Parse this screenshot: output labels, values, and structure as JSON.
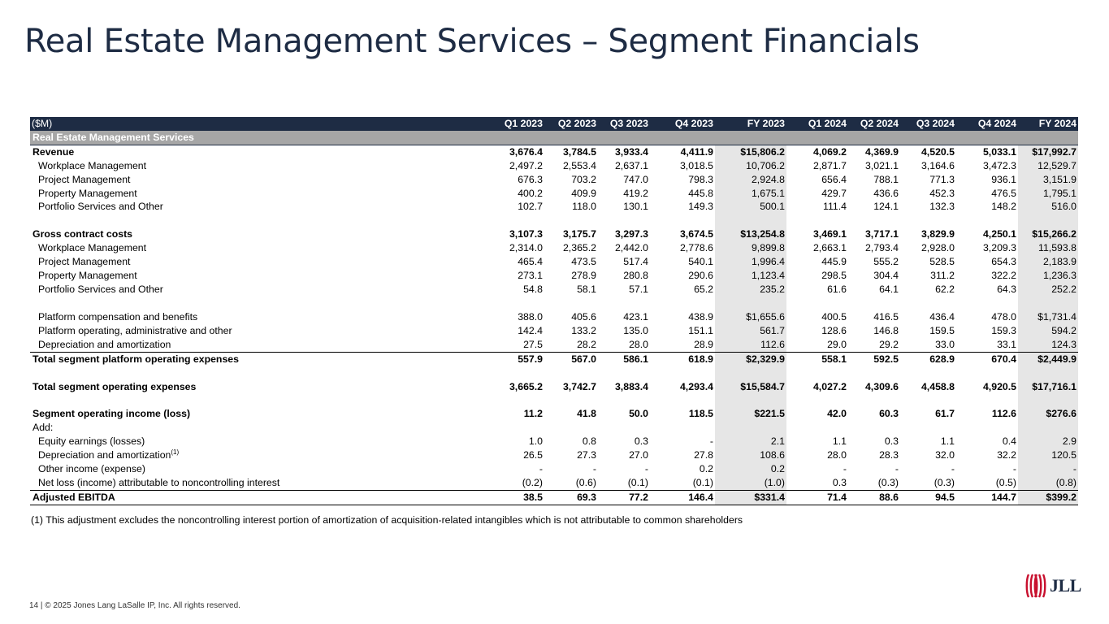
{
  "title": "Real Estate Management Services – Segment Financials",
  "table": {
    "unit_label": "($M)",
    "columns": [
      "Q1 2023",
      "Q2 2023",
      "Q3 2023",
      "Q4 2023",
      "FY 2023",
      "Q1 2024",
      "Q2 2024",
      "Q3 2024",
      "Q4 2024",
      "FY 2024"
    ],
    "section_header": "Real Estate Management Services",
    "rows": [
      {
        "label": "Revenue",
        "style": "bold",
        "values": [
          "3,676.4",
          "3,784.5",
          "3,933.4",
          "4,411.9",
          "$15,806.2",
          "4,069.2",
          "4,369.9",
          "4,520.5",
          "5,033.1",
          "$17,992.7"
        ]
      },
      {
        "label": "Workplace Management",
        "style": "indent",
        "values": [
          "2,497.2",
          "2,553.4",
          "2,637.1",
          "3,018.5",
          "10,706.2",
          "2,871.7",
          "3,021.1",
          "3,164.6",
          "3,472.3",
          "12,529.7"
        ]
      },
      {
        "label": "Project Management",
        "style": "indent",
        "values": [
          "676.3",
          "703.2",
          "747.0",
          "798.3",
          "2,924.8",
          "656.4",
          "788.1",
          "771.3",
          "936.1",
          "3,151.9"
        ]
      },
      {
        "label": "Property Management",
        "style": "indent",
        "values": [
          "400.2",
          "409.9",
          "419.2",
          "445.8",
          "1,675.1",
          "429.7",
          "436.6",
          "452.3",
          "476.5",
          "1,795.1"
        ]
      },
      {
        "label": "Portfolio Services and Other",
        "style": "indent",
        "values": [
          "102.7",
          "118.0",
          "130.1",
          "149.3",
          "500.1",
          "111.4",
          "124.1",
          "132.3",
          "148.2",
          "516.0"
        ]
      },
      {
        "label": "",
        "style": "spacer",
        "values": [
          "",
          "",
          "",
          "",
          "",
          "",
          "",
          "",
          "",
          ""
        ]
      },
      {
        "label": "Gross contract costs",
        "style": "bold",
        "values": [
          "3,107.3",
          "3,175.7",
          "3,297.3",
          "3,674.5",
          "$13,254.8",
          "3,469.1",
          "3,717.1",
          "3,829.9",
          "4,250.1",
          "$15,266.2"
        ]
      },
      {
        "label": "Workplace Management",
        "style": "indent",
        "values": [
          "2,314.0",
          "2,365.2",
          "2,442.0",
          "2,778.6",
          "9,899.8",
          "2,663.1",
          "2,793.4",
          "2,928.0",
          "3,209.3",
          "11,593.8"
        ]
      },
      {
        "label": "Project Management",
        "style": "indent",
        "values": [
          "465.4",
          "473.5",
          "517.4",
          "540.1",
          "1,996.4",
          "445.9",
          "555.2",
          "528.5",
          "654.3",
          "2,183.9"
        ]
      },
      {
        "label": "Property Management",
        "style": "indent",
        "values": [
          "273.1",
          "278.9",
          "280.8",
          "290.6",
          "1,123.4",
          "298.5",
          "304.4",
          "311.2",
          "322.2",
          "1,236.3"
        ]
      },
      {
        "label": "Portfolio Services and Other",
        "style": "indent",
        "values": [
          "54.8",
          "58.1",
          "57.1",
          "65.2",
          "235.2",
          "61.6",
          "64.1",
          "62.2",
          "64.3",
          "252.2"
        ]
      },
      {
        "label": "",
        "style": "spacer",
        "values": [
          "",
          "",
          "",
          "",
          "",
          "",
          "",
          "",
          "",
          ""
        ]
      },
      {
        "label": "Platform compensation and benefits",
        "style": "indent",
        "values": [
          "388.0",
          "405.6",
          "423.1",
          "438.9",
          "$1,655.6",
          "400.5",
          "416.5",
          "436.4",
          "478.0",
          "$1,731.4"
        ]
      },
      {
        "label": "Platform operating, administrative and other",
        "style": "indent",
        "values": [
          "142.4",
          "133.2",
          "135.0",
          "151.1",
          "561.7",
          "128.6",
          "146.8",
          "159.5",
          "159.3",
          "594.2"
        ]
      },
      {
        "label": "Depreciation and amortization",
        "style": "indent",
        "values": [
          "27.5",
          "28.2",
          "28.0",
          "28.9",
          "112.6",
          "29.0",
          "29.2",
          "33.0",
          "33.1",
          "124.3"
        ]
      },
      {
        "label": "Total segment platform operating expenses",
        "style": "bold total",
        "values": [
          "557.9",
          "567.0",
          "586.1",
          "618.9",
          "$2,329.9",
          "558.1",
          "592.5",
          "628.9",
          "670.4",
          "$2,449.9"
        ]
      },
      {
        "label": "",
        "style": "spacer",
        "values": [
          "",
          "",
          "",
          "",
          "",
          "",
          "",
          "",
          "",
          ""
        ]
      },
      {
        "label": "Total segment operating expenses",
        "style": "bold",
        "values": [
          "3,665.2",
          "3,742.7",
          "3,883.4",
          "4,293.4",
          "$15,584.7",
          "4,027.2",
          "4,309.6",
          "4,458.8",
          "4,920.5",
          "$17,716.1"
        ]
      },
      {
        "label": "",
        "style": "spacer",
        "values": [
          "",
          "",
          "",
          "",
          "",
          "",
          "",
          "",
          "",
          ""
        ]
      },
      {
        "label": "Segment operating income (loss)",
        "style": "bold",
        "values": [
          "11.2",
          "41.8",
          "50.0",
          "118.5",
          "$221.5",
          "42.0",
          "60.3",
          "61.7",
          "112.6",
          "$276.6"
        ]
      },
      {
        "label": "Add:",
        "style": "plain",
        "values": [
          "",
          "",
          "",
          "",
          "",
          "",
          "",
          "",
          "",
          ""
        ]
      },
      {
        "label": "Equity earnings (losses)",
        "style": "indent",
        "values": [
          "1.0",
          "0.8",
          "0.3",
          "-",
          "2.1",
          "1.1",
          "0.3",
          "1.1",
          "0.4",
          "2.9"
        ]
      },
      {
        "label": "Depreciation and amortization",
        "sup": "(1)",
        "style": "indent",
        "values": [
          "26.5",
          "27.3",
          "27.0",
          "27.8",
          "108.6",
          "28.0",
          "28.3",
          "32.0",
          "32.2",
          "120.5"
        ]
      },
      {
        "label": "Other income (expense)",
        "style": "indent",
        "values": [
          "-",
          "-",
          "-",
          "0.2",
          "0.2",
          "-",
          "-",
          "-",
          "-",
          "-"
        ]
      },
      {
        "label": "Net loss (income) attributable to noncontrolling interest",
        "style": "indent",
        "values": [
          "(0.2)",
          "(0.6)",
          "(0.1)",
          "(0.1)",
          "(1.0)",
          "0.3",
          "(0.3)",
          "(0.3)",
          "(0.5)",
          "(0.8)"
        ]
      },
      {
        "label": "Adjusted EBITDA",
        "style": "bold ebitda",
        "values": [
          "38.5",
          "69.3",
          "77.2",
          "146.4",
          "$331.4",
          "71.4",
          "88.6",
          "94.5",
          "144.7",
          "$399.2"
        ]
      }
    ]
  },
  "footnote": "(1) This adjustment excludes the noncontrolling interest portion of amortization of acquisition-related intangibles which is not attributable to common shareholders",
  "footer": "14 | © 2025 Jones Lang LaSalle IP, Inc. All rights reserved.",
  "logo": {
    "text": "JLL",
    "icon": "jll-logo-icon",
    "color": "#c8102e"
  },
  "colors": {
    "header_bg": "#1e2c44",
    "section_bg": "#a6a6a6",
    "fy_shade": "#e6e6e6"
  }
}
